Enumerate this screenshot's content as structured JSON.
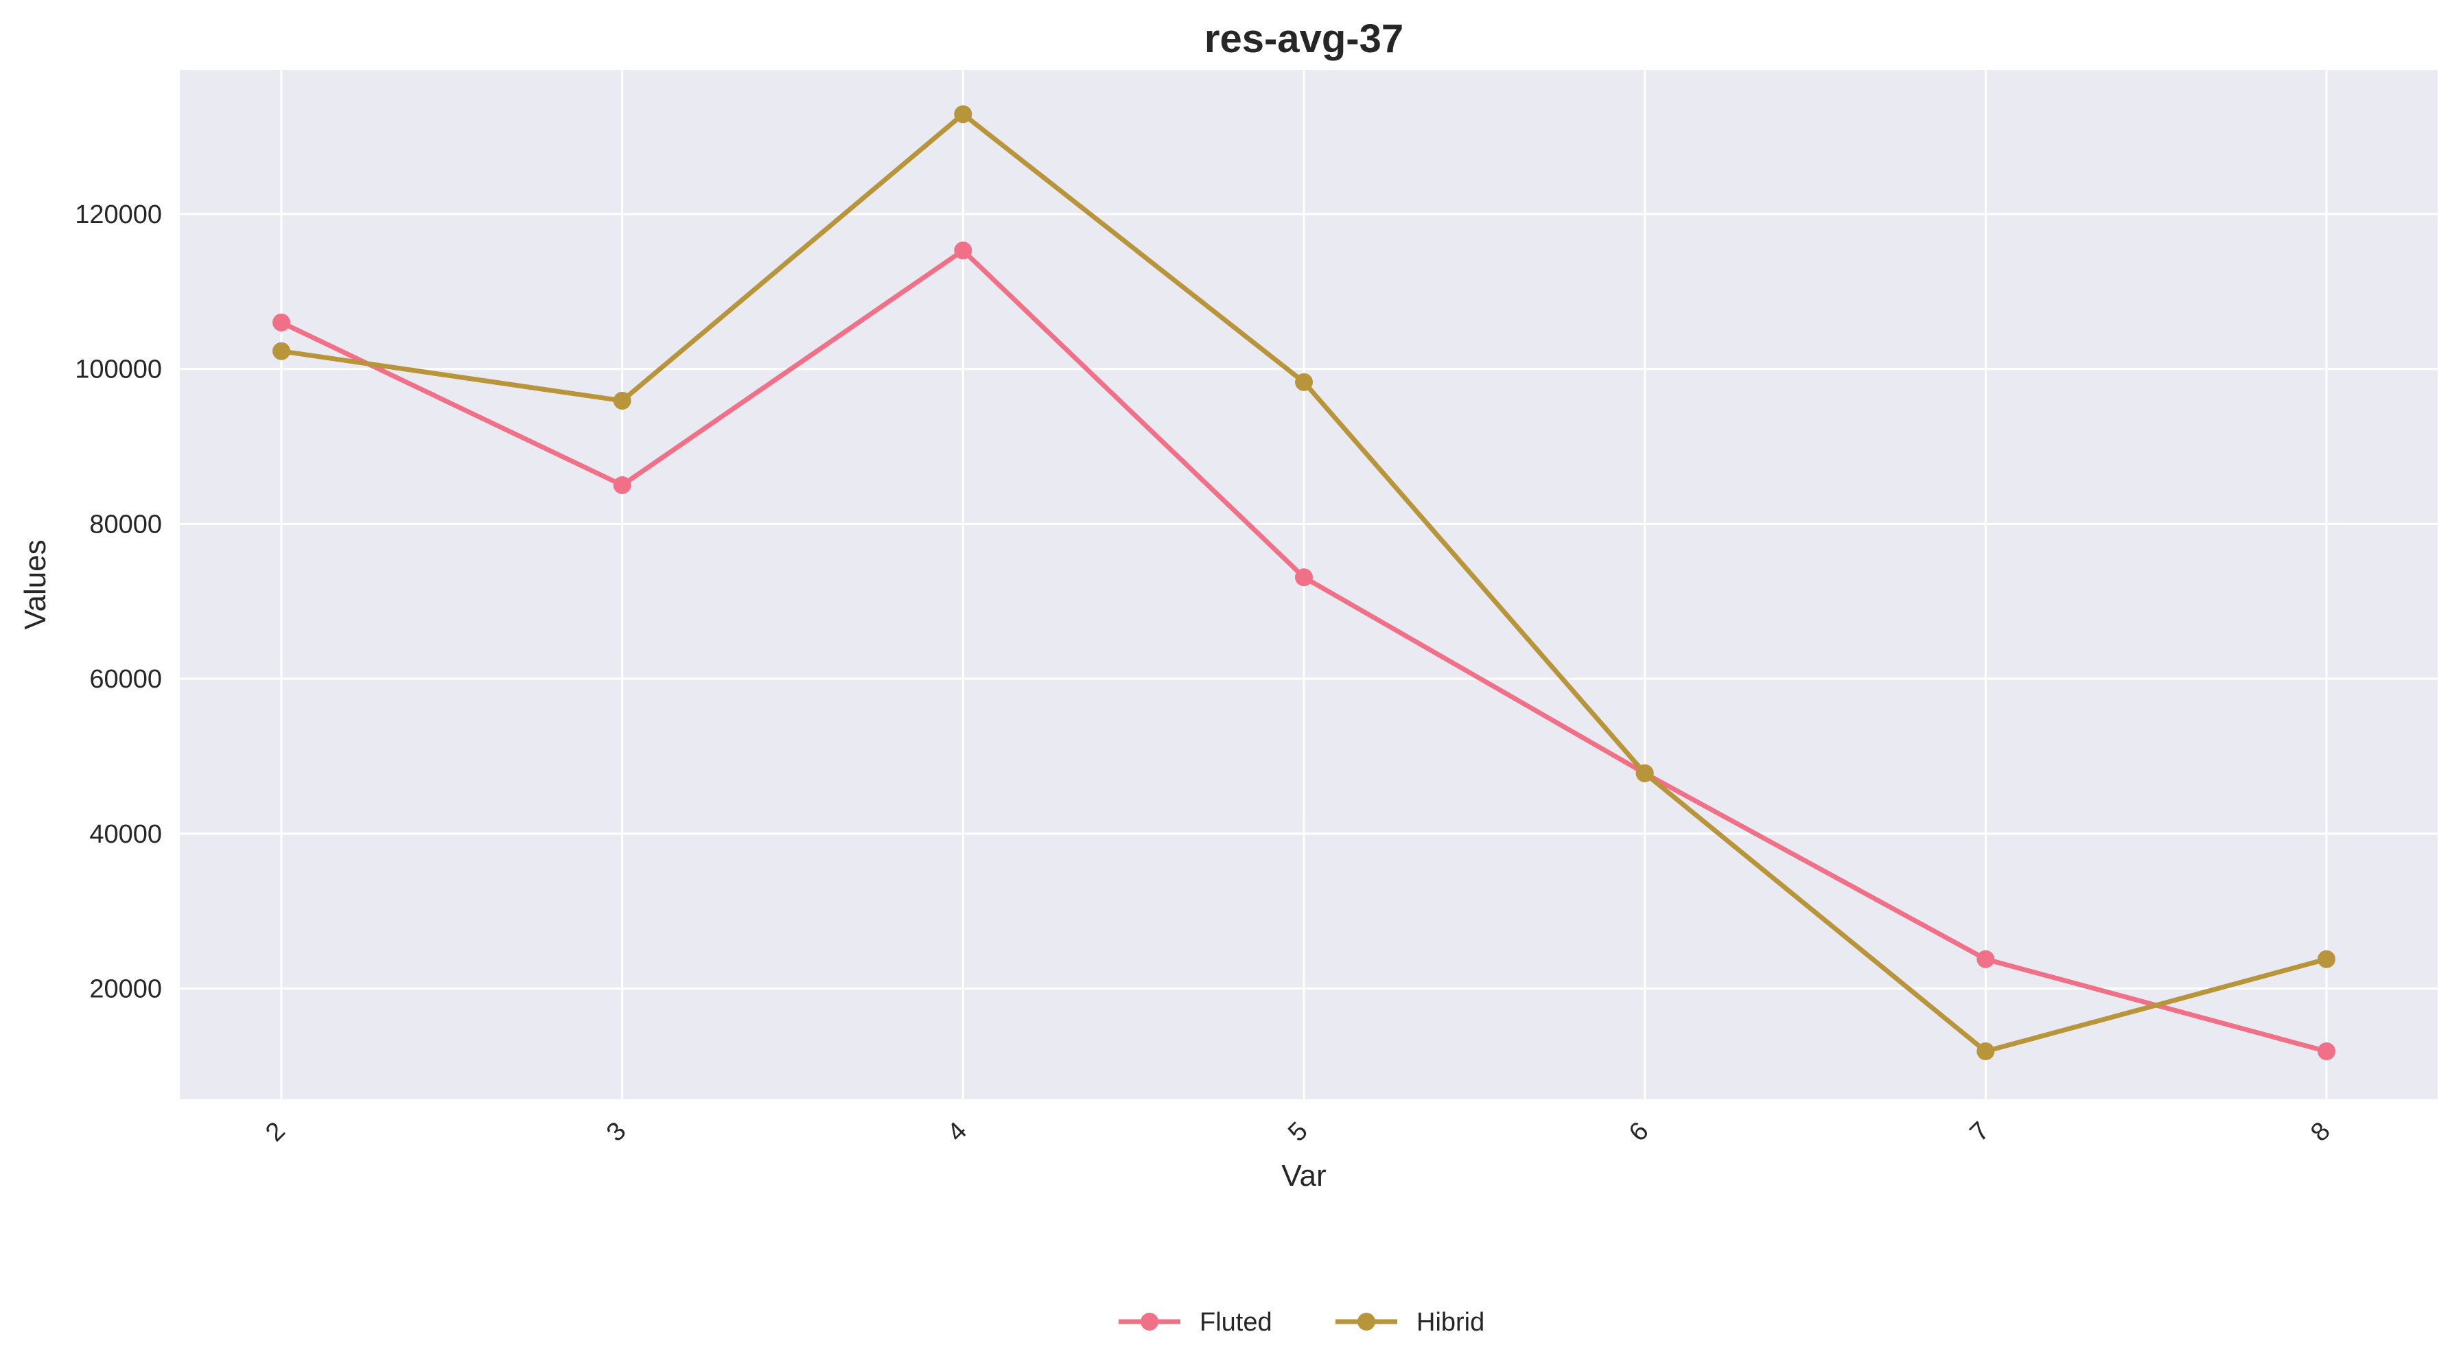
{
  "chart_data": {
    "type": "line",
    "title": "res-avg-37",
    "xlabel": "Var",
    "ylabel": "Values",
    "x": [
      "2",
      "3",
      "4",
      "5",
      "6",
      "7",
      "8"
    ],
    "yticks": [
      20000,
      40000,
      60000,
      80000,
      100000,
      120000
    ],
    "ytick_labels": [
      "20000",
      "40000",
      "60000",
      "80000",
      "100000",
      "120000"
    ],
    "ylim": [
      5700,
      138600
    ],
    "grid": true,
    "legend_position": "bottom-center",
    "background_color": "#eaeaf2",
    "grid_color": "#ffffff",
    "series": [
      {
        "name": "Fluted",
        "color": "#f07088",
        "values": [
          106000,
          85000,
          115300,
          73100,
          47800,
          23800,
          11900
        ]
      },
      {
        "name": "Hibrid",
        "color": "#b8943a",
        "values": [
          102300,
          95900,
          132900,
          98300,
          47800,
          11900,
          23800
        ]
      }
    ]
  }
}
